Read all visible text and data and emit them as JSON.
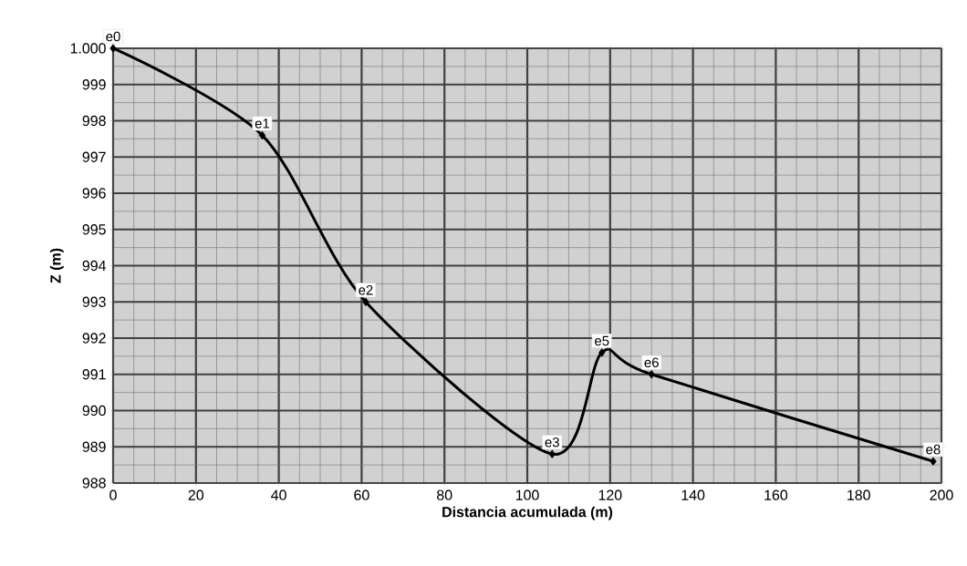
{
  "chart_data": {
    "type": "line",
    "xlabel": "Distancia acumulada (m)",
    "ylabel": "Z (m)",
    "x": [
      0,
      36,
      61,
      106,
      118,
      130,
      198
    ],
    "series": [
      {
        "color": "#000000",
        "values": [
          1000,
          997.6,
          993.0,
          988.8,
          991.6,
          991.0,
          988.6
        ]
      }
    ],
    "xlim": [
      0,
      200
    ],
    "xticks": [
      0,
      20,
      40,
      60,
      80,
      100,
      120,
      140,
      160,
      180,
      200
    ],
    "ylim": [
      988,
      1000
    ],
    "yticks": [
      988,
      989,
      990,
      991,
      992,
      993,
      994,
      995,
      996,
      997,
      998,
      999,
      {
        "value": 1000,
        "label": "1.000"
      }
    ],
    "grid": true,
    "marker": "diamond",
    "line_style": "solid",
    "annotations": [
      {
        "text": "e0",
        "x": 0,
        "y": 1000
      },
      {
        "text": "e1",
        "x": 36,
        "y": 997.6
      },
      {
        "text": "e2",
        "x": 61,
        "y": 993.0
      },
      {
        "text": "e3",
        "x": 106,
        "y": 988.8
      },
      {
        "text": "e5",
        "x": 118,
        "y": 991.6
      },
      {
        "text": "e6",
        "x": 130,
        "y": 991.0
      },
      {
        "text": "e8",
        "x": 198,
        "y": 988.6
      }
    ]
  }
}
